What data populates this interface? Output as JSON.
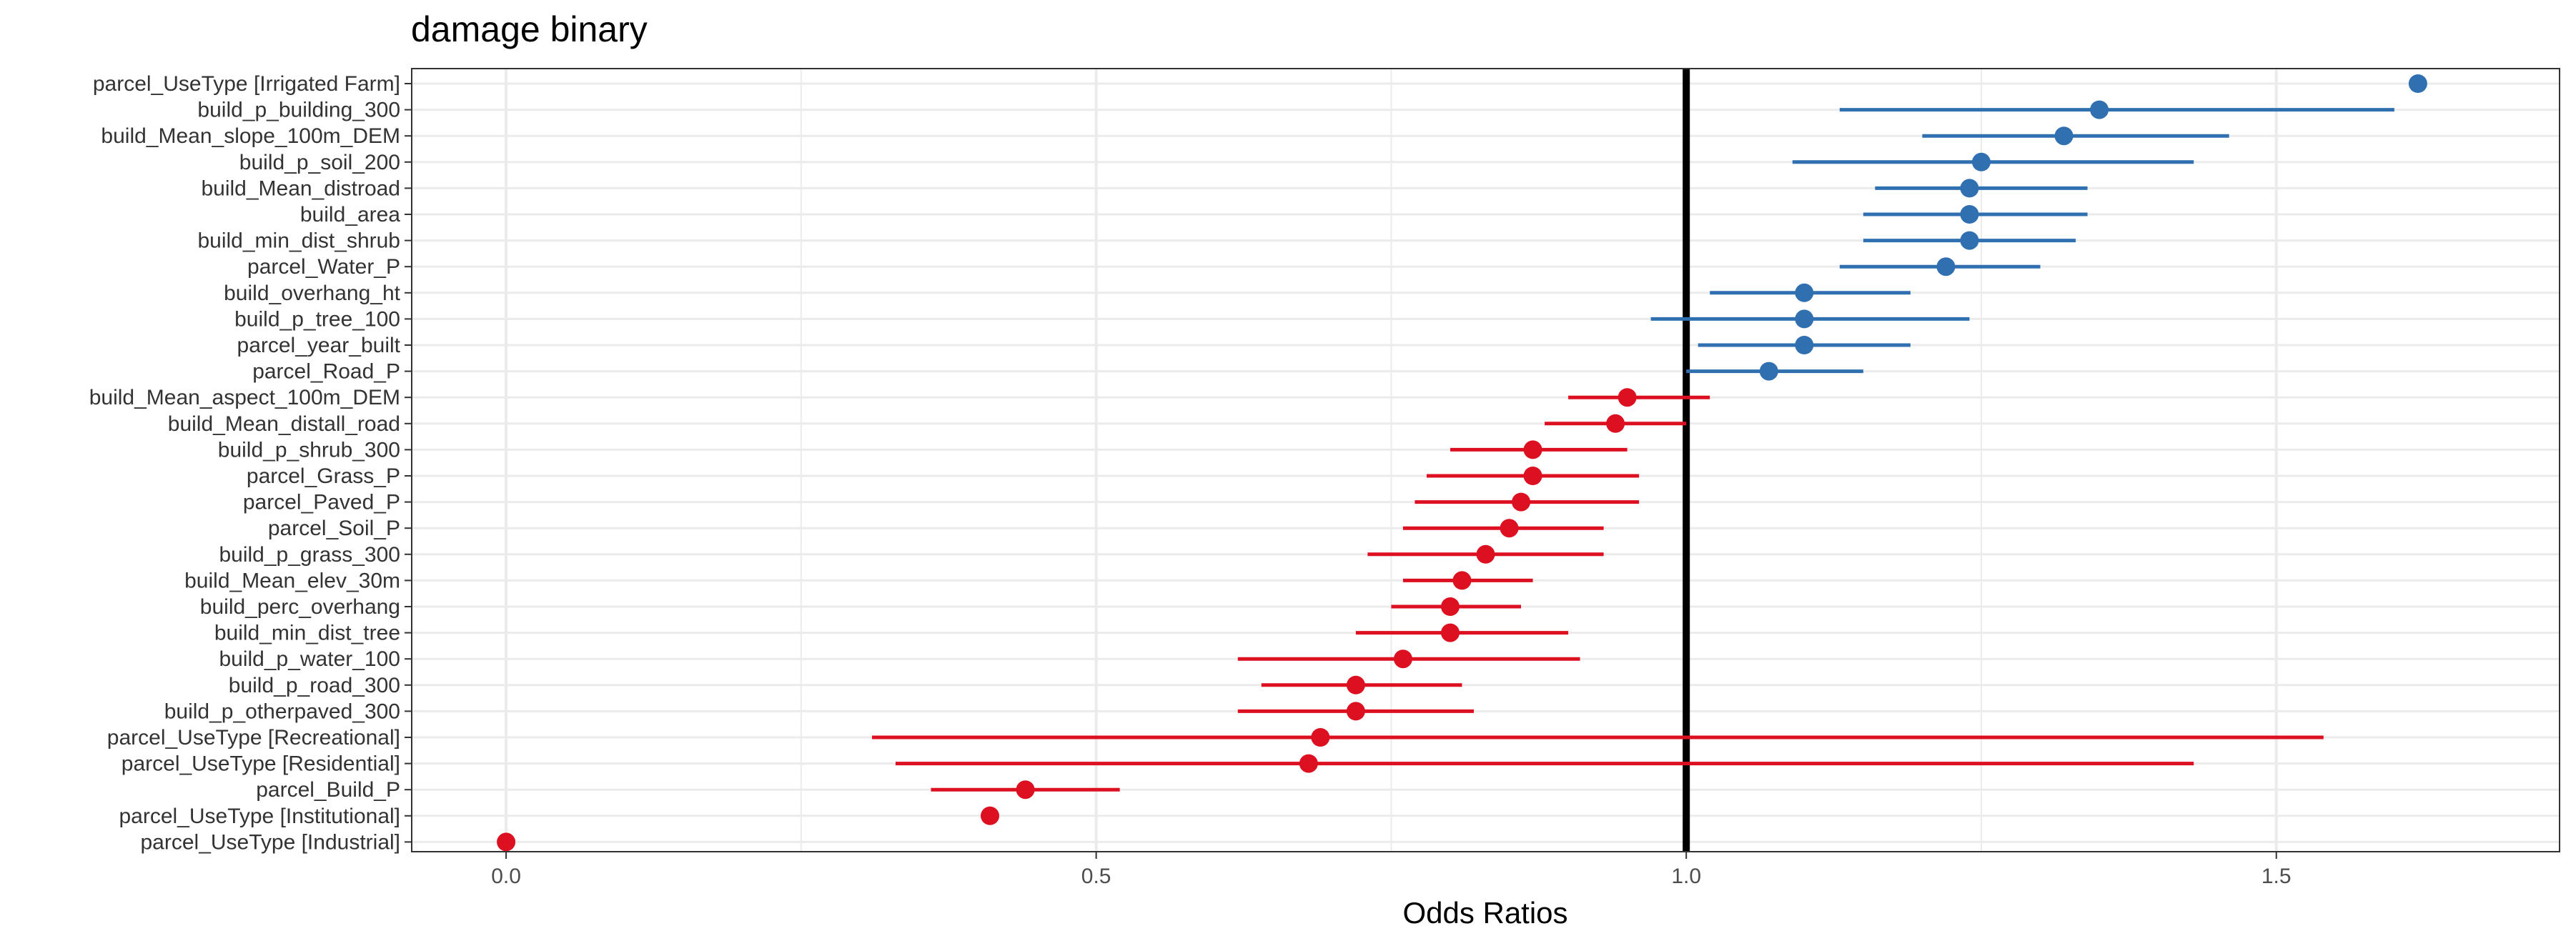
{
  "chart_data": {
    "type": "scatter",
    "subtype": "forest-plot",
    "title": "damage binary",
    "xlabel": "Odds Ratios",
    "ylabel": "",
    "xlim": [
      -0.08,
      1.74
    ],
    "xticks": [
      0.0,
      0.5,
      1.0,
      1.5
    ],
    "xtick_labels": [
      "0.0",
      "0.5",
      "1.0",
      "1.5"
    ],
    "reference_line": 1.0,
    "grid": true,
    "legend": "none",
    "colors": {
      "positive": "#3070b1",
      "negative": "#dd1021",
      "reference": "#000000",
      "grid": "#ebebeb",
      "panel_border": "#333333"
    },
    "terms": [
      {
        "label": "parcel_UseType [Irrigated Farm]",
        "estimate": 1.62,
        "ci_low": null,
        "ci_high": null
      },
      {
        "label": "build_p_building_300",
        "estimate": 1.35,
        "ci_low": 1.13,
        "ci_high": 1.6
      },
      {
        "label": "build_Mean_slope_100m_DEM",
        "estimate": 1.32,
        "ci_low": 1.2,
        "ci_high": 1.46
      },
      {
        "label": "build_p_soil_200",
        "estimate": 1.25,
        "ci_low": 1.09,
        "ci_high": 1.43
      },
      {
        "label": "build_Mean_distroad",
        "estimate": 1.24,
        "ci_low": 1.16,
        "ci_high": 1.34
      },
      {
        "label": "build_area",
        "estimate": 1.24,
        "ci_low": 1.15,
        "ci_high": 1.34
      },
      {
        "label": "build_min_dist_shrub",
        "estimate": 1.24,
        "ci_low": 1.15,
        "ci_high": 1.33
      },
      {
        "label": "parcel_Water_P",
        "estimate": 1.22,
        "ci_low": 1.13,
        "ci_high": 1.3
      },
      {
        "label": "build_overhang_ht",
        "estimate": 1.1,
        "ci_low": 1.02,
        "ci_high": 1.19
      },
      {
        "label": "build_p_tree_100",
        "estimate": 1.1,
        "ci_low": 0.97,
        "ci_high": 1.24
      },
      {
        "label": "parcel_year_built",
        "estimate": 1.1,
        "ci_low": 1.01,
        "ci_high": 1.19
      },
      {
        "label": "parcel_Road_P",
        "estimate": 1.07,
        "ci_low": 1.0,
        "ci_high": 1.15
      },
      {
        "label": "build_Mean_aspect_100m_DEM",
        "estimate": 0.95,
        "ci_low": 0.9,
        "ci_high": 1.02
      },
      {
        "label": "build_Mean_distall_road",
        "estimate": 0.94,
        "ci_low": 0.88,
        "ci_high": 1.0
      },
      {
        "label": "build_p_shrub_300",
        "estimate": 0.87,
        "ci_low": 0.8,
        "ci_high": 0.95
      },
      {
        "label": "parcel_Grass_P",
        "estimate": 0.87,
        "ci_low": 0.78,
        "ci_high": 0.96
      },
      {
        "label": "parcel_Paved_P",
        "estimate": 0.86,
        "ci_low": 0.77,
        "ci_high": 0.96
      },
      {
        "label": "parcel_Soil_P",
        "estimate": 0.85,
        "ci_low": 0.76,
        "ci_high": 0.93
      },
      {
        "label": "build_p_grass_300",
        "estimate": 0.83,
        "ci_low": 0.73,
        "ci_high": 0.93
      },
      {
        "label": "build_Mean_elev_30m",
        "estimate": 0.81,
        "ci_low": 0.76,
        "ci_high": 0.87
      },
      {
        "label": "build_perc_overhang",
        "estimate": 0.8,
        "ci_low": 0.75,
        "ci_high": 0.86
      },
      {
        "label": "build_min_dist_tree",
        "estimate": 0.8,
        "ci_low": 0.72,
        "ci_high": 0.9
      },
      {
        "label": "build_p_water_100",
        "estimate": 0.76,
        "ci_low": 0.62,
        "ci_high": 0.91
      },
      {
        "label": "build_p_road_300",
        "estimate": 0.72,
        "ci_low": 0.64,
        "ci_high": 0.81
      },
      {
        "label": "build_p_otherpaved_300",
        "estimate": 0.72,
        "ci_low": 0.62,
        "ci_high": 0.82
      },
      {
        "label": "parcel_UseType [Recreational]",
        "estimate": 0.69,
        "ci_low": 0.31,
        "ci_high": 1.54
      },
      {
        "label": "parcel_UseType [Residential]",
        "estimate": 0.68,
        "ci_low": 0.33,
        "ci_high": 1.43
      },
      {
        "label": "parcel_Build_P",
        "estimate": 0.44,
        "ci_low": 0.36,
        "ci_high": 0.52
      },
      {
        "label": "parcel_UseType [Institutional]",
        "estimate": 0.41,
        "ci_low": null,
        "ci_high": null
      },
      {
        "label": "parcel_UseType [Industrial]",
        "estimate": 0.0,
        "ci_low": null,
        "ci_high": null
      }
    ]
  }
}
